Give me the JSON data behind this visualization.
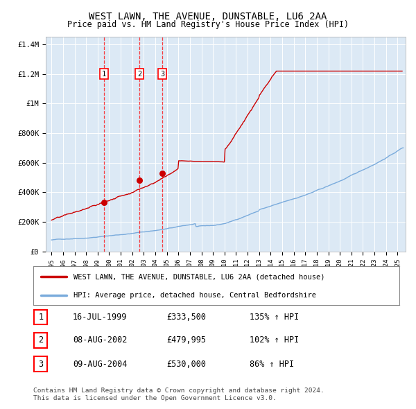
{
  "title": "WEST LAWN, THE AVENUE, DUNSTABLE, LU6 2AA",
  "subtitle": "Price paid vs. HM Land Registry's House Price Index (HPI)",
  "bg_color": "#dce9f5",
  "red_line_color": "#cc0000",
  "blue_line_color": "#7aabdc",
  "transactions": [
    {
      "num": 1,
      "date_label": "16-JUL-1999",
      "x": 1999.54,
      "price": 333500,
      "hpi_pct": "135% ↑ HPI"
    },
    {
      "num": 2,
      "date_label": "08-AUG-2002",
      "x": 2002.61,
      "price": 479995,
      "hpi_pct": "102% ↑ HPI"
    },
    {
      "num": 3,
      "date_label": "09-AUG-2004",
      "x": 2004.61,
      "price": 530000,
      "hpi_pct": "86% ↑ HPI"
    }
  ],
  "legend_red_label": "WEST LAWN, THE AVENUE, DUNSTABLE, LU6 2AA (detached house)",
  "legend_blue_label": "HPI: Average price, detached house, Central Bedfordshire",
  "footnote": "Contains HM Land Registry data © Crown copyright and database right 2024.\nThis data is licensed under the Open Government Licence v3.0.",
  "ylim": [
    0,
    1450000
  ],
  "xlim": [
    1994.5,
    2025.7
  ],
  "yticks": [
    0,
    200000,
    400000,
    600000,
    800000,
    1000000,
    1200000,
    1400000
  ],
  "ytick_labels": [
    "£0",
    "£200K",
    "£400K",
    "£600K",
    "£800K",
    "£1M",
    "£1.2M",
    "£1.4M"
  ]
}
